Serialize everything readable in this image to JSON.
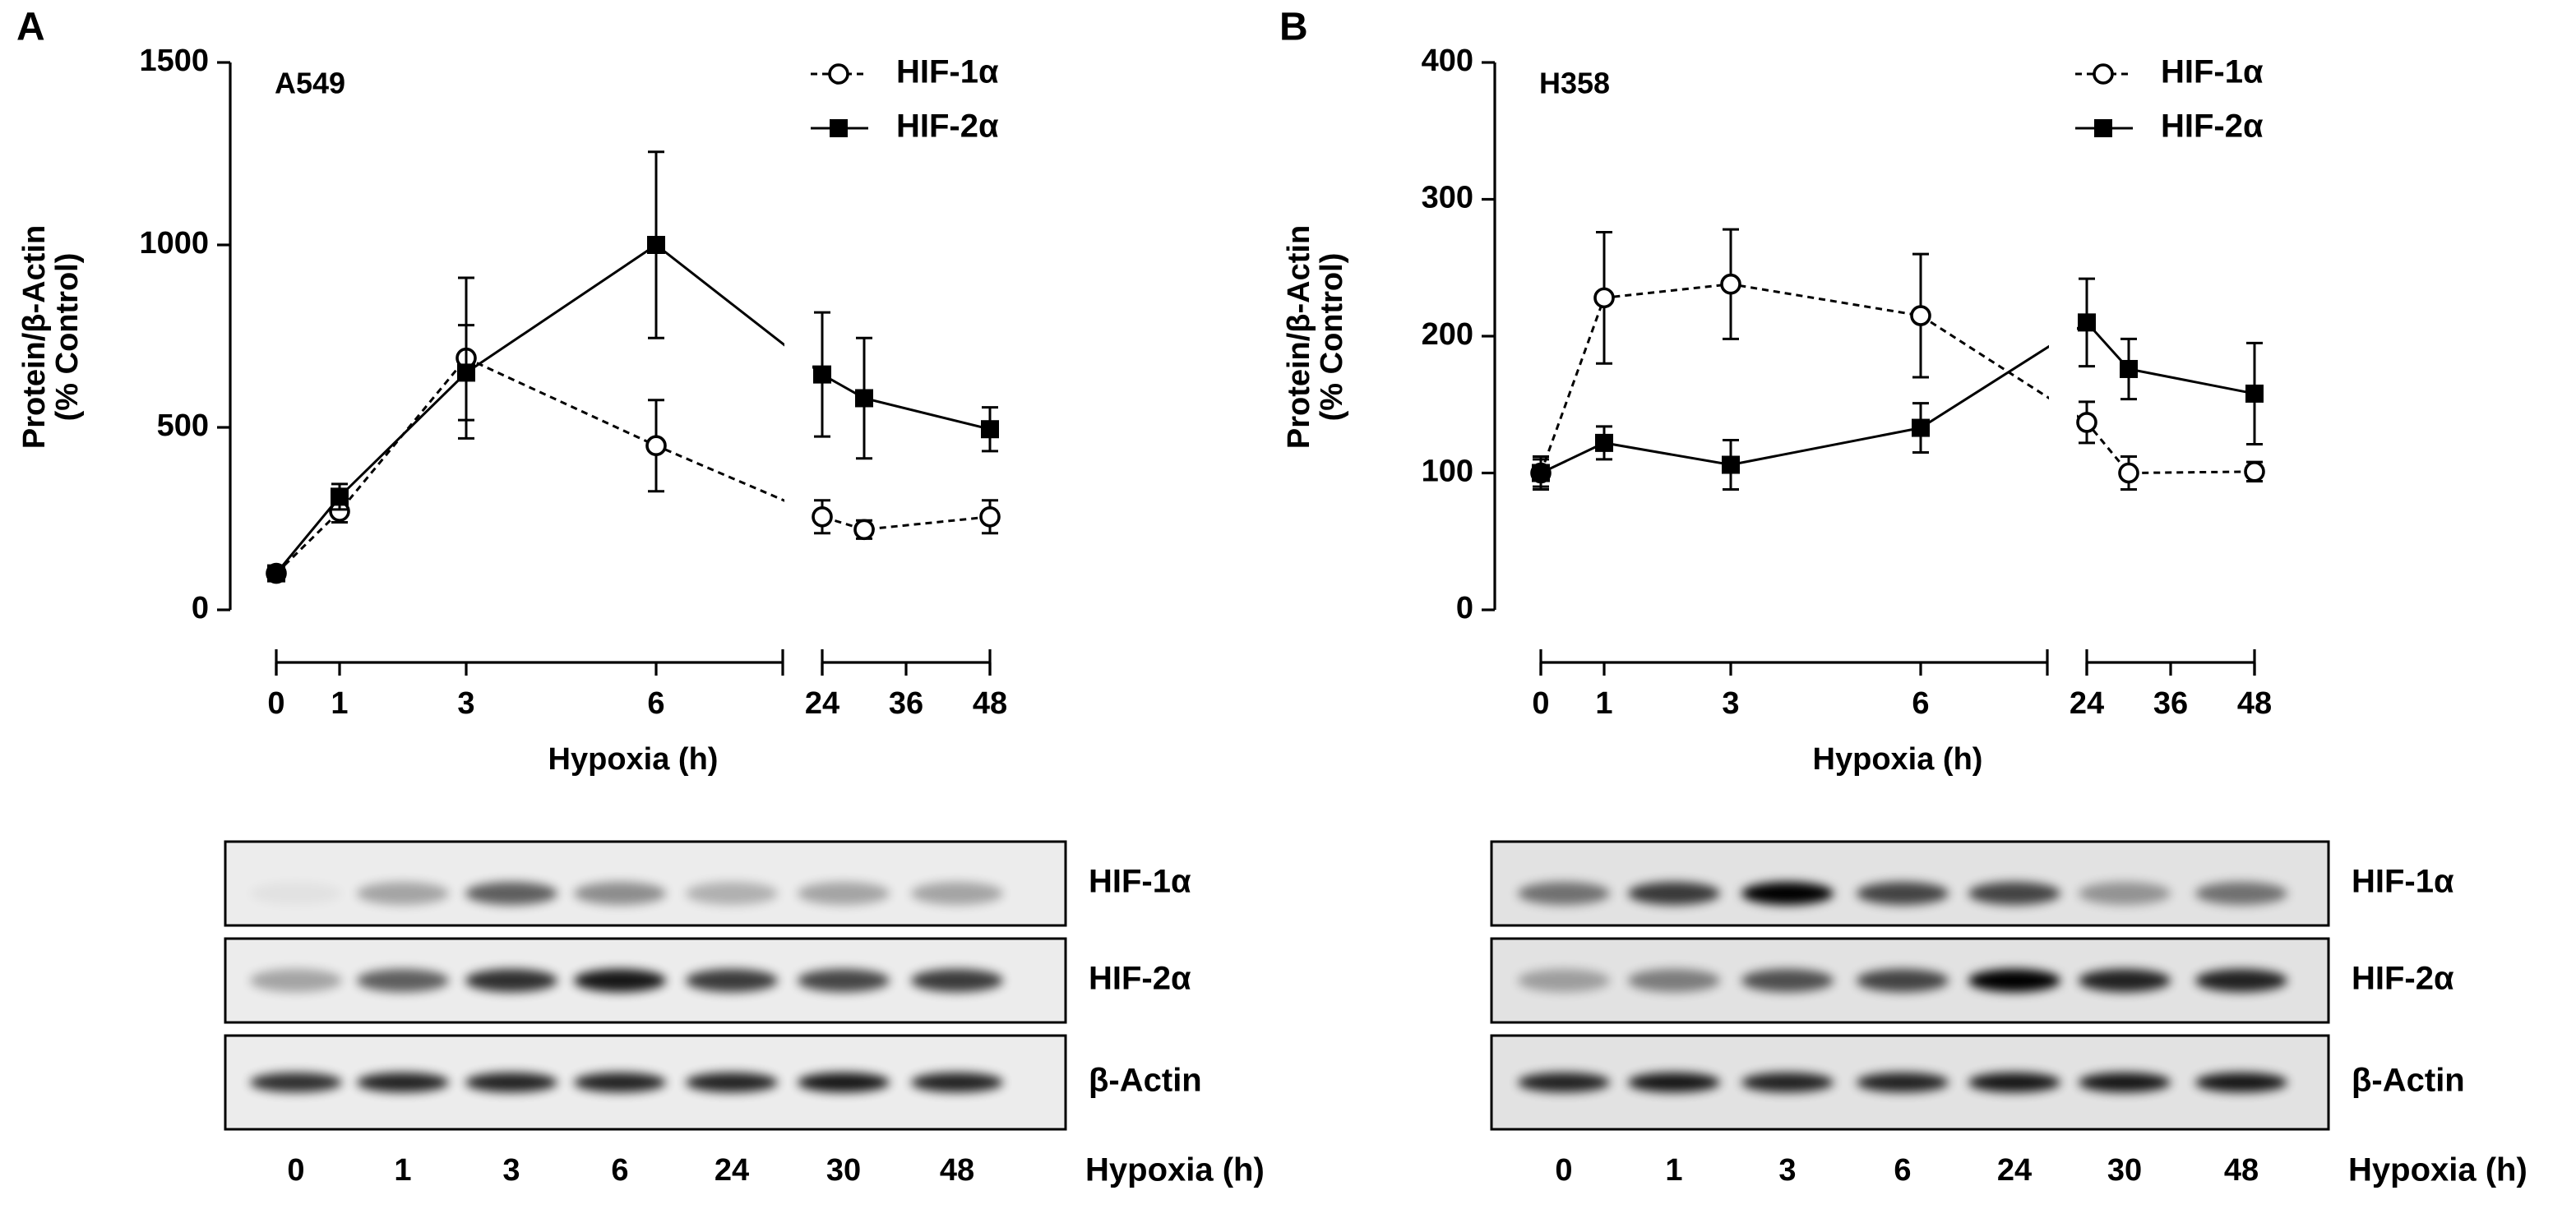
{
  "chart_data": [
    {
      "type": "line",
      "panel": "A",
      "annotation": "A549",
      "ylabel": [
        "Protein/β-Actin",
        "(% Control)"
      ],
      "xlabel": "Hypoxia (h)",
      "x": [
        0,
        1,
        3,
        6,
        24,
        30,
        48
      ],
      "xsegments": [
        {
          "xlim": [
            0,
            8
          ],
          "xticks": [
            0,
            1,
            3,
            6
          ]
        },
        {
          "xlim": [
            24,
            48
          ],
          "xticks": [
            24,
            36,
            48
          ]
        }
      ],
      "ylim": [
        0,
        1500
      ],
      "yticks": [
        0,
        500,
        1000,
        1500
      ],
      "legend": "upper right",
      "series": [
        {
          "name": "HIF-1α",
          "color": "#000000",
          "marker": "open-circle",
          "dashed": true,
          "values": [
            100,
            270,
            690,
            450,
            255,
            220,
            255
          ],
          "errors": [
            20,
            30,
            220,
            125,
            45,
            25,
            45
          ]
        },
        {
          "name": "HIF-2α",
          "color": "#000000",
          "marker": "filled-square",
          "dashed": false,
          "values": [
            100,
            310,
            650,
            1000,
            645,
            580,
            495
          ],
          "errors": [
            15,
            35,
            130,
            255,
            170,
            165,
            60
          ]
        }
      ],
      "blot": {
        "rows": [
          "HIF-1α",
          "HIF-2α",
          "β-Actin"
        ],
        "lanes": [
          0,
          1,
          3,
          6,
          24,
          30,
          48
        ],
        "xlabel": "Hypoxia (h)"
      }
    },
    {
      "type": "line",
      "panel": "B",
      "annotation": "H358",
      "ylabel": [
        "Protein/β-Actin",
        "(% Control)"
      ],
      "xlabel": "Hypoxia (h)",
      "x": [
        0,
        1,
        3,
        6,
        24,
        30,
        48
      ],
      "xsegments": [
        {
          "xlim": [
            0,
            8
          ],
          "xticks": [
            0,
            1,
            3,
            6
          ]
        },
        {
          "xlim": [
            24,
            48
          ],
          "xticks": [
            24,
            36,
            48
          ]
        }
      ],
      "ylim": [
        0,
        400
      ],
      "yticks": [
        0,
        100,
        200,
        300,
        400
      ],
      "legend": "upper right",
      "series": [
        {
          "name": "HIF-1α",
          "color": "#000000",
          "marker": "open-circle",
          "dashed": true,
          "values": [
            100,
            228,
            238,
            215,
            137,
            100,
            101
          ],
          "errors": [
            12,
            48,
            40,
            45,
            15,
            12,
            7
          ]
        },
        {
          "name": "HIF-2α",
          "color": "#000000",
          "marker": "filled-square",
          "dashed": false,
          "values": [
            100,
            122,
            106,
            133,
            210,
            176,
            158
          ],
          "errors": [
            10,
            12,
            18,
            18,
            32,
            22,
            37
          ]
        }
      ],
      "blot": {
        "rows": [
          "HIF-1α",
          "HIF-2α",
          "β-Actin"
        ],
        "lanes": [
          0,
          1,
          3,
          6,
          24,
          30,
          48
        ],
        "xlabel": "Hypoxia (h)"
      }
    }
  ]
}
